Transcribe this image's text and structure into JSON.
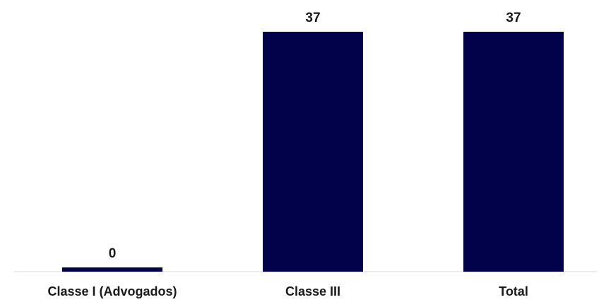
{
  "chart_data": {
    "type": "bar",
    "categories": [
      "Classe I (Advogados)",
      "Classe III",
      "Total"
    ],
    "values": [
      0,
      37,
      37
    ],
    "data_labels": [
      "0",
      "37",
      "37"
    ],
    "title": "",
    "xlabel": "",
    "ylabel": "",
    "ylim": [
      0,
      37
    ],
    "grid": false,
    "legend": "none",
    "colors": {
      "bar": "#02024a",
      "axis": "#d9d9d9",
      "text": "#1a1a1a"
    }
  }
}
